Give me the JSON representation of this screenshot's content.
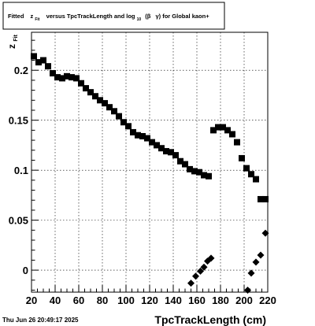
{
  "title": {
    "part1": "Fitted",
    "z": "z",
    "z_sub": "Fit",
    "part2": "versus TpcTrackLength and log",
    "log_sub": "10",
    "beta": "(β",
    "gamma": "γ) for Global kaon+"
  },
  "timestamp": "Thu Jun 26 20:49:17 2025",
  "chart_data": {
    "type": "scatter",
    "xlabel": "TpcTrackLength (cm)",
    "ylabel": "z",
    "ylabel_sub": "Fit",
    "xlim": [
      20,
      220
    ],
    "ylim": [
      -0.022,
      0.238
    ],
    "x_ticks": [
      20,
      40,
      60,
      80,
      100,
      120,
      140,
      160,
      180,
      200,
      220
    ],
    "y_ticks": [
      0,
      0.05,
      0.1,
      0.15,
      0.2
    ],
    "y_tick_labels": [
      "0",
      "0.05",
      "0.1",
      "0.15",
      "0.2"
    ],
    "grid": true,
    "series": [
      {
        "marker": "square",
        "color": "#000000",
        "x": [
          22,
          26,
          30,
          34,
          38,
          42,
          46,
          50,
          54,
          58,
          62,
          66,
          70,
          74,
          78,
          82,
          86,
          90,
          94,
          98,
          102,
          106,
          110,
          114,
          118,
          122,
          126,
          130,
          134,
          138,
          142,
          146,
          150,
          154,
          158,
          162,
          166,
          170,
          174,
          178,
          182,
          186,
          190,
          194,
          198,
          202,
          206,
          210,
          214,
          218
        ],
        "y": [
          0.214,
          0.208,
          0.21,
          0.204,
          0.197,
          0.193,
          0.192,
          0.194,
          0.193,
          0.192,
          0.187,
          0.182,
          0.178,
          0.174,
          0.17,
          0.167,
          0.163,
          0.159,
          0.154,
          0.148,
          0.144,
          0.138,
          0.135,
          0.134,
          0.132,
          0.128,
          0.125,
          0.122,
          0.119,
          0.118,
          0.115,
          0.109,
          0.106,
          0.101,
          0.099,
          0.098,
          0.095,
          0.094,
          0.14,
          0.143,
          0.143,
          0.14,
          0.136,
          0.128,
          0.112,
          0.102,
          0.096,
          0.091,
          0.071,
          0.071
        ]
      },
      {
        "marker": "diamond",
        "color": "#000000",
        "x": [
          155,
          159,
          163,
          166,
          169,
          172,
          203,
          206,
          210,
          214,
          218
        ],
        "y": -0.013,
        "y_values": [
          -0.013,
          -0.006,
          -0.001,
          0.003,
          0.009,
          0.012,
          -0.02,
          -0.003,
          0.008,
          0.015,
          0.037
        ]
      }
    ]
  }
}
